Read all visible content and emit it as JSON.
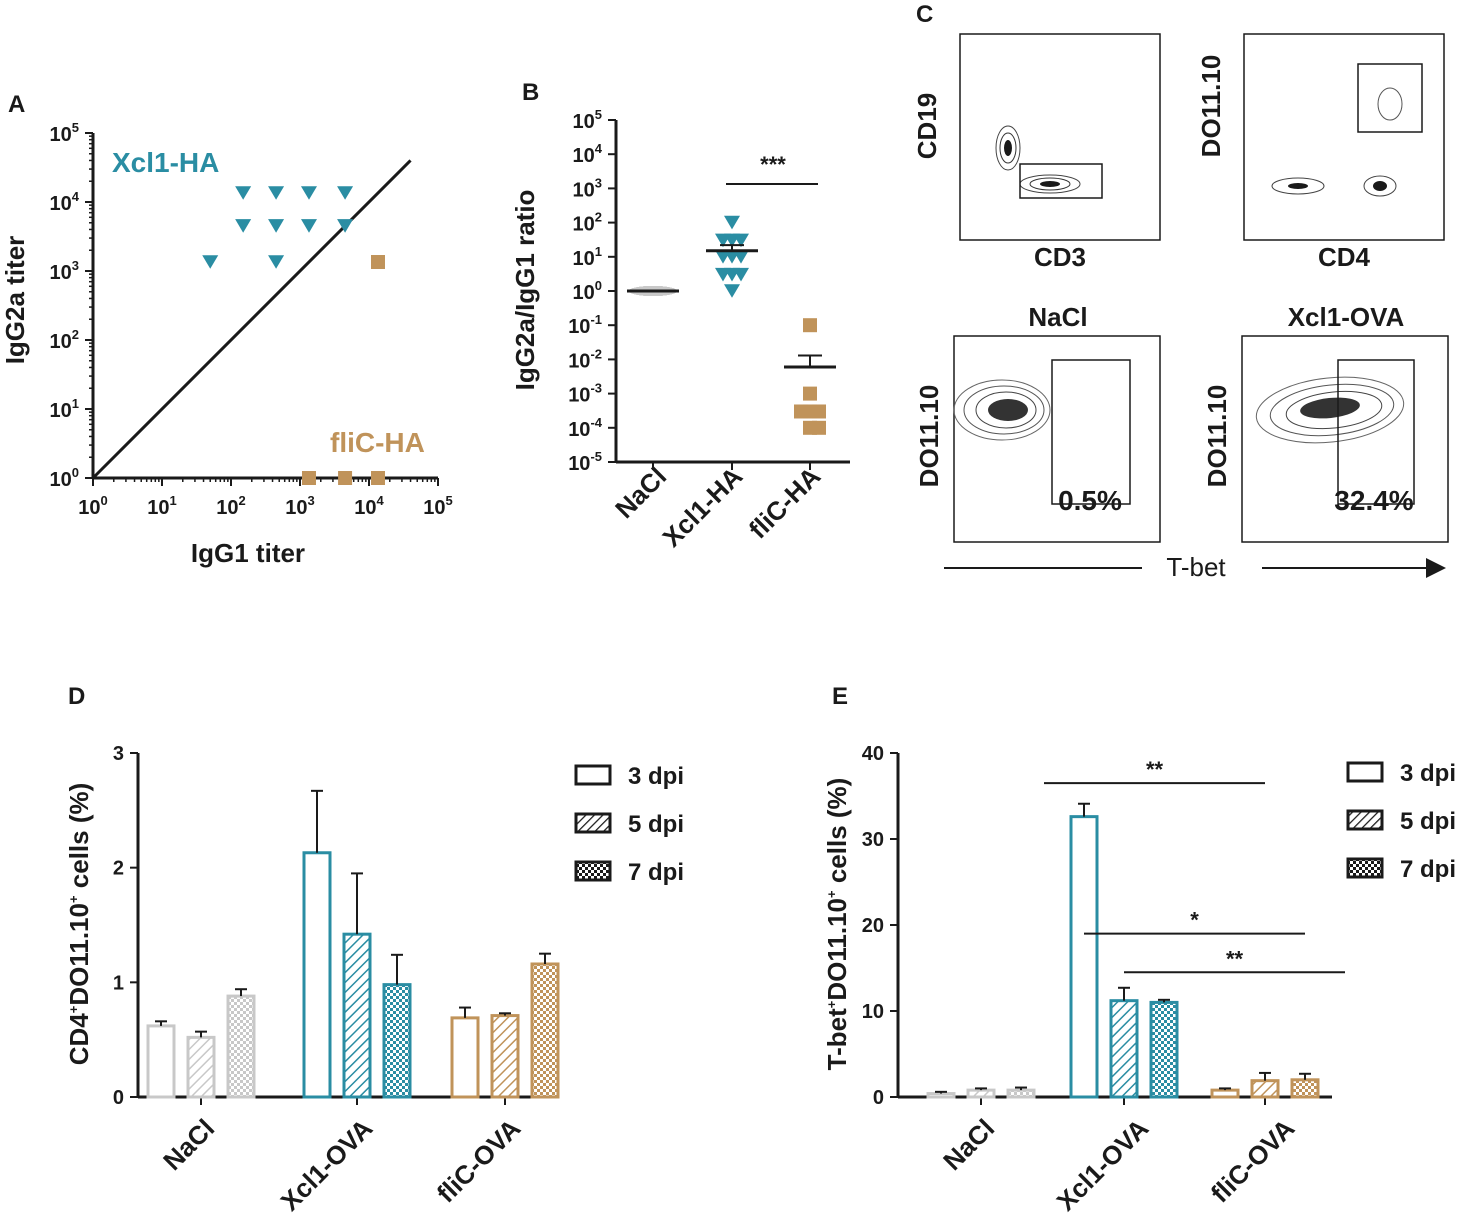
{
  "colors": {
    "teal": "#2a8da3",
    "gold": "#c0935a",
    "grey": "#c8c8c8",
    "black": "#1a1a1a"
  },
  "panels": {
    "A": {
      "letter": "A",
      "chart_data": {
        "type": "scatter",
        "xscale": "log10",
        "yscale": "log10",
        "xlim": [
          1,
          100000
        ],
        "ylim": [
          1,
          100000
        ],
        "xlabel": "IgG1 titer",
        "ylabel": "IgG2a titer",
        "tick_base": "10",
        "tick_exponents": [
          "0",
          "1",
          "2",
          "3",
          "4",
          "5"
        ],
        "diagonal": {
          "from": [
            1,
            1
          ],
          "to": [
            40000,
            40000
          ]
        },
        "series": [
          {
            "name": "Xcl1-HA",
            "marker": "triangle-down",
            "color": "#2a8da3",
            "points": [
              [
                50,
                1350
              ],
              [
                150,
                13500
              ],
              [
                150,
                4500
              ],
              [
                450,
                13500
              ],
              [
                450,
                4500
              ],
              [
                450,
                1350
              ],
              [
                1350,
                13500
              ],
              [
                1350,
                4500
              ],
              [
                4500,
                13500
              ],
              [
                4500,
                4500
              ]
            ]
          },
          {
            "name": "fliC-HA",
            "marker": "square",
            "color": "#c0935a",
            "points": [
              [
                13500,
                1350
              ],
              [
                1350,
                1
              ],
              [
                4500,
                1
              ],
              [
                13500,
                1
              ]
            ]
          }
        ]
      }
    },
    "B": {
      "letter": "B",
      "chart_data": {
        "type": "scatter",
        "yscale": "log10",
        "ylim": [
          1e-05,
          100000
        ],
        "ylabel": "IgG2a/IgG1 ratio",
        "tick_base": "10",
        "tick_exponents": [
          "-5",
          "-4",
          "-3",
          "-2",
          "-1",
          "0",
          "1",
          "2",
          "3",
          "4",
          "5"
        ],
        "categories": [
          "NaCl",
          "Xcl1-HA",
          "fliC-HA"
        ],
        "groups": [
          {
            "name": "NaCl",
            "marker": "circle",
            "color": "#c8c8c8",
            "mean": 1.0,
            "sd_upper": 1.0,
            "points": [
              1,
              1,
              1,
              1,
              1,
              1,
              1,
              1,
              1,
              1
            ]
          },
          {
            "name": "Xcl1-HA",
            "marker": "triangle-down",
            "color": "#2a8da3",
            "mean": 15,
            "sd_upper": 22,
            "points": [
              100,
              30,
              30,
              30,
              10,
              10,
              10,
              3,
              3,
              3,
              1
            ]
          },
          {
            "name": "fliC-HA",
            "marker": "square",
            "color": "#c0935a",
            "mean": 0.006,
            "sd_upper": 0.013,
            "points": [
              0.1,
              0.001,
              0.0003,
              0.0003,
              0.0003,
              0.0001,
              0.0001
            ]
          }
        ],
        "significance": [
          {
            "from": "Xcl1-HA",
            "to": "fliC-HA",
            "label": "***",
            "y": 1000
          }
        ]
      }
    },
    "C": {
      "letter": "C",
      "gating": [
        {
          "xlabel": "CD3",
          "ylabel": "CD19"
        },
        {
          "xlabel": "CD4",
          "ylabel": "DO11.10"
        }
      ],
      "samples": [
        {
          "title": "NaCl",
          "ylabel": "DO11.10",
          "percent": "0.5%"
        },
        {
          "title": "Xcl1-OVA",
          "ylabel": "DO11.10",
          "percent": "32.4%"
        }
      ],
      "shared_xlabel": "T-bet"
    },
    "D": {
      "letter": "D",
      "chart_data": {
        "type": "bar",
        "ylabel_main": "CD4",
        "ylabel_sup": "+",
        "ylabel_rest": "DO11.10",
        "ylabel_sup2": "+",
        "ylabel_tail": " cells (%)",
        "ylim": [
          0,
          3
        ],
        "yticks": [
          "0",
          "1",
          "2",
          "3"
        ],
        "categories": [
          "NaCl",
          "Xcl1-OVA",
          "fliC-OVA"
        ],
        "series": [
          {
            "name": "3 dpi",
            "pattern": "open",
            "values": [
              0.62,
              2.13,
              0.69
            ],
            "errors": [
              0.04,
              0.54,
              0.09
            ]
          },
          {
            "name": "5 dpi",
            "pattern": "hatch",
            "values": [
              0.52,
              1.42,
              0.71
            ],
            "errors": [
              0.05,
              0.53,
              0.02
            ]
          },
          {
            "name": "7 dpi",
            "pattern": "check",
            "values": [
              0.88,
              0.98,
              1.16
            ],
            "errors": [
              0.06,
              0.26,
              0.09
            ]
          }
        ],
        "category_colors": [
          "#c8c8c8",
          "#2a8da3",
          "#c0935a"
        ]
      }
    },
    "E": {
      "letter": "E",
      "chart_data": {
        "type": "bar",
        "ylabel_main": "T-bet",
        "ylabel_sup": "+",
        "ylabel_rest": "DO11.10",
        "ylabel_sup2": "+",
        "ylabel_tail": " cells (%)",
        "ylim": [
          0,
          40
        ],
        "yticks": [
          "0",
          "10",
          "20",
          "30",
          "40"
        ],
        "categories": [
          "NaCl",
          "Xcl1-OVA",
          "fliC-OVA"
        ],
        "series": [
          {
            "name": "3 dpi",
            "pattern": "open",
            "values": [
              0.4,
              32.6,
              0.8
            ],
            "errors": [
              0.2,
              1.5,
              0.2
            ]
          },
          {
            "name": "5 dpi",
            "pattern": "hatch",
            "values": [
              0.8,
              11.2,
              1.9
            ],
            "errors": [
              0.2,
              1.5,
              0.9
            ]
          },
          {
            "name": "7 dpi",
            "pattern": "check",
            "values": [
              0.8,
              11.0,
              2.0
            ],
            "errors": [
              0.3,
              0.3,
              0.7
            ]
          }
        ],
        "category_colors": [
          "#c8c8c8",
          "#2a8da3",
          "#c0935a"
        ],
        "significance": [
          {
            "label": "**",
            "from": "Xcl1-OVA 3 dpi",
            "to": "fliC-OVA 3 dpi"
          },
          {
            "label": "*",
            "from": "Xcl1-OVA 5 dpi",
            "to": "fliC-OVA 5 dpi"
          },
          {
            "label": "**",
            "from": "Xcl1-OVA 7 dpi",
            "to": "fliC-OVA 7 dpi"
          }
        ]
      }
    }
  }
}
